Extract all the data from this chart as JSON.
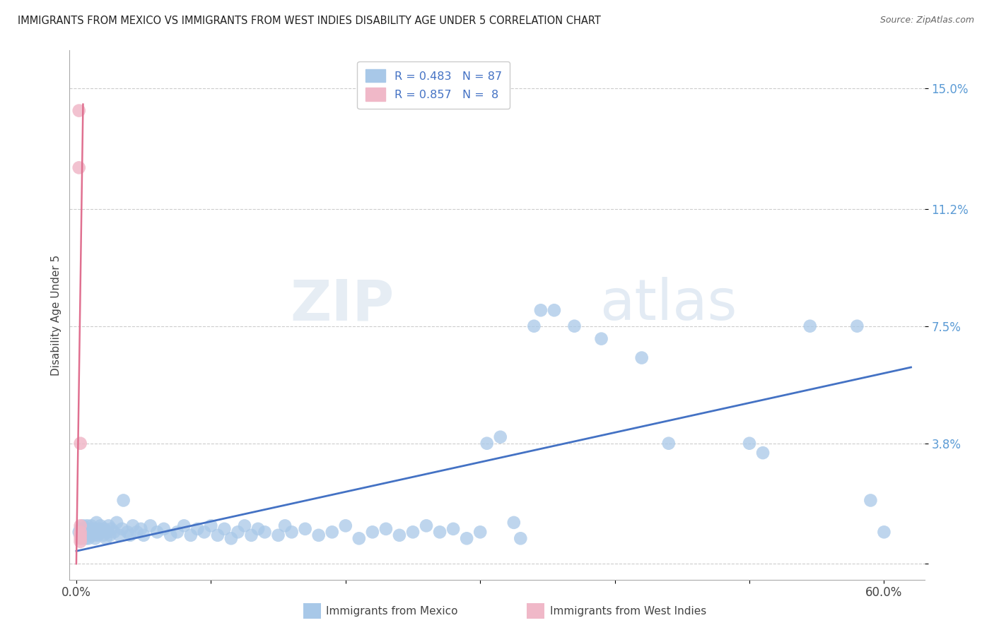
{
  "title": "IMMIGRANTS FROM MEXICO VS IMMIGRANTS FROM WEST INDIES DISABILITY AGE UNDER 5 CORRELATION CHART",
  "source": "Source: ZipAtlas.com",
  "ylabel": "Disability Age Under 5",
  "y_tick_values": [
    0.0,
    0.038,
    0.075,
    0.112,
    0.15
  ],
  "y_tick_labels": [
    "",
    "3.8%",
    "7.5%",
    "11.2%",
    "15.0%"
  ],
  "x_tick_vals": [
    0.0,
    0.1,
    0.2,
    0.3,
    0.4,
    0.5,
    0.6
  ],
  "x_tick_labels": [
    "0.0%",
    "",
    "",
    "",
    "",
    "",
    "60.0%"
  ],
  "xlim": [
    -0.005,
    0.63
  ],
  "ylim": [
    -0.005,
    0.162
  ],
  "mexico_color": "#a8c8e8",
  "west_indies_color": "#f0b8c8",
  "mexico_line_color": "#4472c4",
  "west_indies_line_color": "#e07090",
  "background_color": "#ffffff",
  "watermark": "ZIPatlas",
  "grid_color": "#cccccc",
  "mexico_scatter": [
    [
      0.002,
      0.01
    ],
    [
      0.003,
      0.009
    ],
    [
      0.003,
      0.011
    ],
    [
      0.004,
      0.008
    ],
    [
      0.005,
      0.01
    ],
    [
      0.005,
      0.012
    ],
    [
      0.006,
      0.009
    ],
    [
      0.006,
      0.011
    ],
    [
      0.007,
      0.008
    ],
    [
      0.007,
      0.01
    ],
    [
      0.008,
      0.009
    ],
    [
      0.008,
      0.012
    ],
    [
      0.009,
      0.01
    ],
    [
      0.009,
      0.008
    ],
    [
      0.01,
      0.011
    ],
    [
      0.01,
      0.009
    ],
    [
      0.011,
      0.012
    ],
    [
      0.012,
      0.01
    ],
    [
      0.013,
      0.009
    ],
    [
      0.013,
      0.011
    ],
    [
      0.014,
      0.008
    ],
    [
      0.015,
      0.01
    ],
    [
      0.015,
      0.013
    ],
    [
      0.016,
      0.009
    ],
    [
      0.017,
      0.011
    ],
    [
      0.018,
      0.012
    ],
    [
      0.019,
      0.01
    ],
    [
      0.02,
      0.009
    ],
    [
      0.021,
      0.011
    ],
    [
      0.022,
      0.008
    ],
    [
      0.023,
      0.01
    ],
    [
      0.024,
      0.012
    ],
    [
      0.025,
      0.009
    ],
    [
      0.026,
      0.011
    ],
    [
      0.028,
      0.01
    ],
    [
      0.03,
      0.013
    ],
    [
      0.032,
      0.009
    ],
    [
      0.034,
      0.011
    ],
    [
      0.035,
      0.02
    ],
    [
      0.038,
      0.01
    ],
    [
      0.04,
      0.009
    ],
    [
      0.042,
      0.012
    ],
    [
      0.045,
      0.01
    ],
    [
      0.048,
      0.011
    ],
    [
      0.05,
      0.009
    ],
    [
      0.055,
      0.012
    ],
    [
      0.06,
      0.01
    ],
    [
      0.065,
      0.011
    ],
    [
      0.07,
      0.009
    ],
    [
      0.075,
      0.01
    ],
    [
      0.08,
      0.012
    ],
    [
      0.085,
      0.009
    ],
    [
      0.09,
      0.011
    ],
    [
      0.095,
      0.01
    ],
    [
      0.1,
      0.012
    ],
    [
      0.105,
      0.009
    ],
    [
      0.11,
      0.011
    ],
    [
      0.115,
      0.008
    ],
    [
      0.12,
      0.01
    ],
    [
      0.125,
      0.012
    ],
    [
      0.13,
      0.009
    ],
    [
      0.135,
      0.011
    ],
    [
      0.14,
      0.01
    ],
    [
      0.15,
      0.009
    ],
    [
      0.155,
      0.012
    ],
    [
      0.16,
      0.01
    ],
    [
      0.17,
      0.011
    ],
    [
      0.18,
      0.009
    ],
    [
      0.19,
      0.01
    ],
    [
      0.2,
      0.012
    ],
    [
      0.21,
      0.008
    ],
    [
      0.22,
      0.01
    ],
    [
      0.23,
      0.011
    ],
    [
      0.24,
      0.009
    ],
    [
      0.25,
      0.01
    ],
    [
      0.26,
      0.012
    ],
    [
      0.27,
      0.01
    ],
    [
      0.28,
      0.011
    ],
    [
      0.29,
      0.008
    ],
    [
      0.3,
      0.01
    ],
    [
      0.305,
      0.038
    ],
    [
      0.315,
      0.04
    ],
    [
      0.325,
      0.013
    ],
    [
      0.33,
      0.008
    ],
    [
      0.34,
      0.075
    ],
    [
      0.345,
      0.08
    ],
    [
      0.355,
      0.08
    ],
    [
      0.37,
      0.075
    ],
    [
      0.39,
      0.071
    ],
    [
      0.42,
      0.065
    ],
    [
      0.44,
      0.038
    ],
    [
      0.5,
      0.038
    ],
    [
      0.51,
      0.035
    ],
    [
      0.545,
      0.075
    ],
    [
      0.58,
      0.075
    ],
    [
      0.59,
      0.02
    ],
    [
      0.6,
      0.01
    ]
  ],
  "west_indies_scatter": [
    [
      0.002,
      0.143
    ],
    [
      0.002,
      0.125
    ],
    [
      0.003,
      0.038
    ],
    [
      0.003,
      0.012
    ],
    [
      0.003,
      0.01
    ],
    [
      0.003,
      0.009
    ],
    [
      0.003,
      0.008
    ],
    [
      0.003,
      0.007
    ]
  ]
}
